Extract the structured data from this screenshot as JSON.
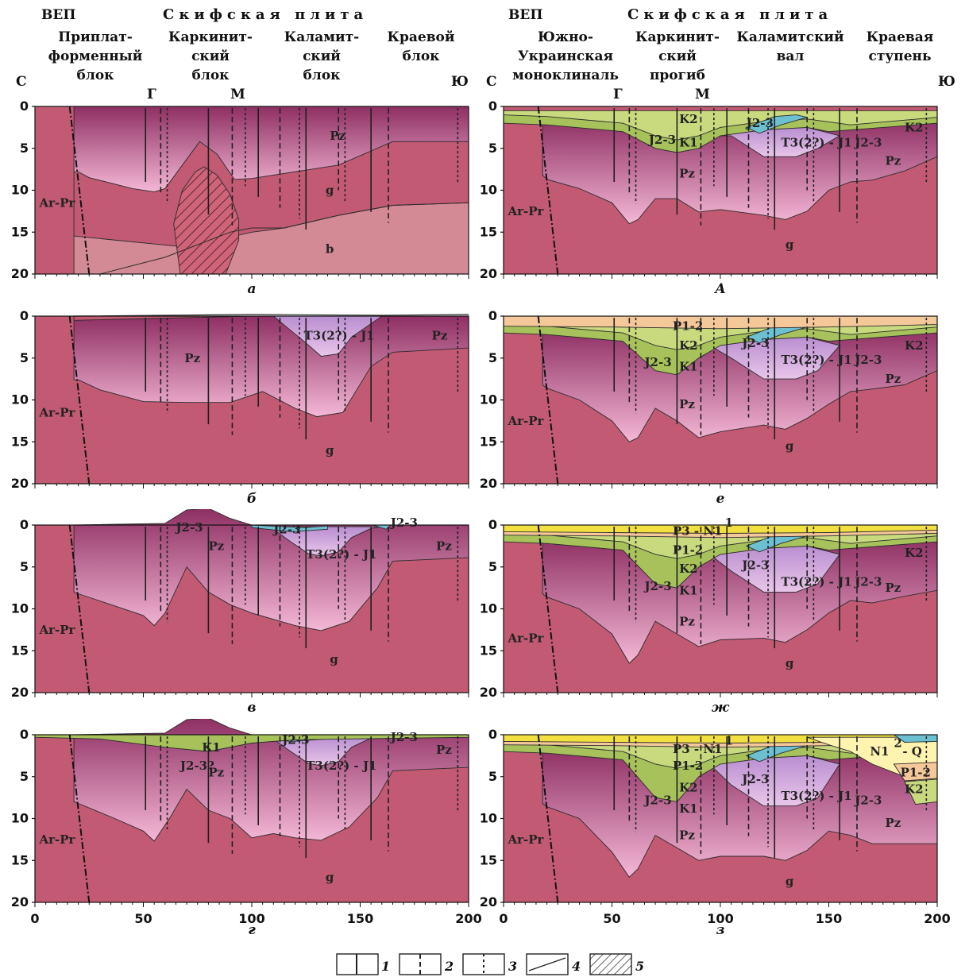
{
  "header": {
    "left": {
      "region_left": "ВЕП",
      "region_right": "Скифская плита",
      "blocks": [
        "Приплат-\nформенный\nблок",
        "Каркинит-\nский\nблок",
        "Каламит-\nский\nблок",
        "Краевой\nблок"
      ],
      "north": "С",
      "south": "Ю",
      "markers": [
        "Г",
        "М"
      ]
    },
    "right": {
      "region_left": "ВЕП",
      "region_right": "Скифская плита",
      "blocks": [
        "Южно-\nУкраинская\nмоноклиналь",
        "Каркинит-\nский\nпрогиб",
        "Каламитский\nвал",
        "Краевая\nступень"
      ],
      "north": "С",
      "south": "Ю",
      "markers": [
        "Г",
        "М"
      ]
    }
  },
  "axes": {
    "y_ticks": [
      "0",
      "5",
      "10",
      "15",
      "20"
    ],
    "x_ticks": [
      "0",
      "50",
      "100",
      "150",
      "200"
    ]
  },
  "panels": [
    {
      "id": "a",
      "label": "а",
      "col": 0,
      "row": 0,
      "units": [
        {
          "text": "Ar-Pr",
          "x": 2,
          "y": 11.5
        },
        {
          "text": "Pz",
          "x": 136,
          "y": 3.5
        },
        {
          "text": "g",
          "x": 134,
          "y": 10
        },
        {
          "text": "b",
          "x": 134,
          "y": 17
        }
      ]
    },
    {
      "id": "b",
      "label": "б",
      "col": 0,
      "row": 1,
      "units": [
        {
          "text": "Ar-Pr",
          "x": 2,
          "y": 11.5
        },
        {
          "text": "Pz",
          "x": 69,
          "y": 5
        },
        {
          "text": "T3(2?) - J1",
          "x": 124,
          "y": 2.3
        },
        {
          "text": "Pz",
          "x": 183,
          "y": 2.3
        },
        {
          "text": "g",
          "x": 134,
          "y": 16
        }
      ]
    },
    {
      "id": "v",
      "label": "в",
      "col": 0,
      "row": 2,
      "units": [
        {
          "text": "Ar-Pr",
          "x": 2,
          "y": 12.5
        },
        {
          "text": "J2-3",
          "x": 65,
          "y": 0.3
        },
        {
          "text": "Pz",
          "x": 80,
          "y": 2.5
        },
        {
          "text": "J2-3",
          "x": 110,
          "y": 0.5
        },
        {
          "text": "T3(2?) - J1",
          "x": 125,
          "y": 3.5
        },
        {
          "text": "J2-3",
          "x": 164,
          "y": -0.3
        },
        {
          "text": "Pz",
          "x": 185,
          "y": 2.5
        },
        {
          "text": "g",
          "x": 136,
          "y": 16
        }
      ]
    },
    {
      "id": "g",
      "label": "г",
      "col": 0,
      "row": 3,
      "units": [
        {
          "text": "Ar-Pr",
          "x": 2,
          "y": 12.5
        },
        {
          "text": "K1",
          "x": 77,
          "y": 1.5
        },
        {
          "text": "J2-3?",
          "x": 67,
          "y": 3.7
        },
        {
          "text": "Pz",
          "x": 80,
          "y": 4.5
        },
        {
          "text": "J2-3",
          "x": 114,
          "y": 0.6
        },
        {
          "text": "T3(2?) - J1",
          "x": 125,
          "y": 3.7
        },
        {
          "text": "J2-3",
          "x": 164,
          "y": 0.3
        },
        {
          "text": "Pz",
          "x": 185,
          "y": 1.8
        },
        {
          "text": "g",
          "x": 134,
          "y": 17
        }
      ]
    },
    {
      "id": "A",
      "label": "А",
      "col": 1,
      "row": 0,
      "units": [
        {
          "text": "Ar-Pr",
          "x": 2,
          "y": 12.5
        },
        {
          "text": "K2",
          "x": 81,
          "y": 1.5
        },
        {
          "text": "K1",
          "x": 81,
          "y": 4.3
        },
        {
          "text": "J2-3",
          "x": 67,
          "y": 4
        },
        {
          "text": "J2-3",
          "x": 112,
          "y": 2
        },
        {
          "text": "T3(2?) - J1",
          "x": 128,
          "y": 4.3
        },
        {
          "text": "J2-3",
          "x": 162,
          "y": 4.3
        },
        {
          "text": "K2",
          "x": 185,
          "y": 2.5
        },
        {
          "text": "Pz",
          "x": 81,
          "y": 8
        },
        {
          "text": "Pz",
          "x": 176,
          "y": 6.5
        },
        {
          "text": "g",
          "x": 130,
          "y": 16.5
        }
      ]
    },
    {
      "id": "e",
      "label": "е",
      "col": 1,
      "row": 1,
      "units": [
        {
          "text": "Ar-Pr",
          "x": 2,
          "y": 12.5
        },
        {
          "text": "P1-2",
          "x": 78,
          "y": 1.2
        },
        {
          "text": "K2",
          "x": 81,
          "y": 3.5
        },
        {
          "text": "K1",
          "x": 81,
          "y": 6
        },
        {
          "text": "J2-3",
          "x": 65,
          "y": 5.5
        },
        {
          "text": "J2-3",
          "x": 110,
          "y": 3.2
        },
        {
          "text": "T3(2?) - J1",
          "x": 128,
          "y": 5.2
        },
        {
          "text": "J2-3",
          "x": 162,
          "y": 5.2
        },
        {
          "text": "K2",
          "x": 185,
          "y": 3.5
        },
        {
          "text": "Pz",
          "x": 81,
          "y": 10.5
        },
        {
          "text": "Pz",
          "x": 176,
          "y": 7.5
        },
        {
          "text": "g",
          "x": 130,
          "y": 15.5
        }
      ]
    },
    {
      "id": "zh",
      "label": "ж",
      "col": 1,
      "row": 2,
      "units": [
        {
          "text": "Ar-Pr",
          "x": 2,
          "y": 13.5
        },
        {
          "text": "P3 - N1",
          "x": 78,
          "y": 0.7
        },
        {
          "text": "1",
          "x": 102,
          "y": -0.3
        },
        {
          "text": "P1-2",
          "x": 78,
          "y": 3
        },
        {
          "text": "K2",
          "x": 81,
          "y": 5.2
        },
        {
          "text": "K1",
          "x": 81,
          "y": 7.8
        },
        {
          "text": "J2-3",
          "x": 65,
          "y": 7.3
        },
        {
          "text": "J2-3",
          "x": 110,
          "y": 4.8
        },
        {
          "text": "T3(2?) - J1",
          "x": 128,
          "y": 6.8
        },
        {
          "text": "J2-3",
          "x": 162,
          "y": 6.8
        },
        {
          "text": "K2",
          "x": 185,
          "y": 3.3
        },
        {
          "text": "Pz",
          "x": 81,
          "y": 11.5
        },
        {
          "text": "Pz",
          "x": 176,
          "y": 7.5
        },
        {
          "text": "g",
          "x": 130,
          "y": 16.5
        }
      ]
    },
    {
      "id": "z",
      "label": "з",
      "col": 1,
      "row": 3,
      "units": [
        {
          "text": "Ar-Pr",
          "x": 2,
          "y": 12.5
        },
        {
          "text": "P3 - N1",
          "x": 78,
          "y": 1.7
        },
        {
          "text": "1",
          "x": 102,
          "y": 0.7
        },
        {
          "text": "P1-2",
          "x": 78,
          "y": 3.7
        },
        {
          "text": "N1",
          "x": 169,
          "y": 2
        },
        {
          "text": "2",
          "x": 180,
          "y": 1
        },
        {
          "text": "- Q",
          "x": 184,
          "y": 2
        },
        {
          "text": "P1-2",
          "x": 183,
          "y": 4.5
        },
        {
          "text": "K2",
          "x": 81,
          "y": 6.3
        },
        {
          "text": "K1",
          "x": 81,
          "y": 8.8
        },
        {
          "text": "J2-3",
          "x": 65,
          "y": 7.8
        },
        {
          "text": "J2-3",
          "x": 110,
          "y": 5.3
        },
        {
          "text": "T3(2?) - J1",
          "x": 128,
          "y": 7.3
        },
        {
          "text": "J2-3",
          "x": 162,
          "y": 7.8
        },
        {
          "text": "K2",
          "x": 185,
          "y": 6.5
        },
        {
          "text": "Pz",
          "x": 81,
          "y": 12
        },
        {
          "text": "Pz",
          "x": 176,
          "y": 10.5
        },
        {
          "text": "g",
          "x": 130,
          "y": 17.5
        }
      ]
    }
  ],
  "legend": [
    "1",
    "2",
    "3",
    "4",
    "5"
  ],
  "colors": {
    "basement": "#c25a73",
    "pz_top": "#8e2f63",
    "pz_bottom": "#f2b7d4",
    "trias": "#cfa6d8",
    "jurassic": "#6cc0d2",
    "k1": "#a7c25a",
    "k2": "#c9d97e",
    "p12": "#f5c89a",
    "p3n1": "#f2e040",
    "n1q": "#fff3b0",
    "b_layer": "#d48a95",
    "granite": "#cf6478",
    "line": "#2b2b2b"
  }
}
